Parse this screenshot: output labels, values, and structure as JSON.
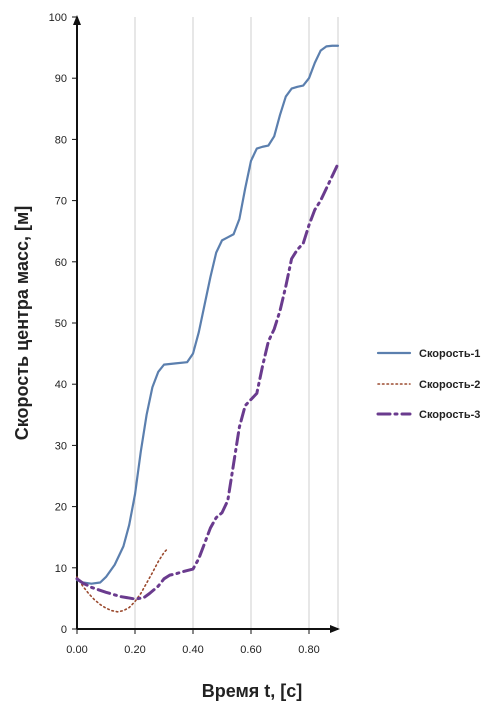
{
  "chart_data": {
    "type": "line",
    "title": "",
    "xlabel": "Время t, [c]",
    "ylabel": "Скорость центра масс, [м]",
    "xlim": [
      0,
      0.9
    ],
    "ylim": [
      0,
      100
    ],
    "x_ticks": [
      "0.00",
      "0.20",
      "0.40",
      "0.60",
      "0.80"
    ],
    "x_tick_values": [
      0,
      0.2,
      0.4,
      0.6,
      0.8
    ],
    "y_ticks": [
      "0",
      "10",
      "20",
      "30",
      "40",
      "50",
      "60",
      "70",
      "80",
      "90",
      "100"
    ],
    "y_tick_values": [
      0,
      10,
      20,
      30,
      40,
      50,
      60,
      70,
      80,
      90,
      100
    ],
    "grid": "vertical",
    "legend_position": "right",
    "series": [
      {
        "name": "Скорость-1",
        "color": "#5b7fae",
        "style": "solid",
        "x": [
          0,
          0.02,
          0.05,
          0.08,
          0.1,
          0.13,
          0.16,
          0.18,
          0.2,
          0.22,
          0.24,
          0.26,
          0.28,
          0.3,
          0.34,
          0.38,
          0.4,
          0.42,
          0.44,
          0.46,
          0.48,
          0.5,
          0.52,
          0.54,
          0.56,
          0.58,
          0.6,
          0.62,
          0.64,
          0.66,
          0.68,
          0.7,
          0.72,
          0.74,
          0.76,
          0.78,
          0.8,
          0.82,
          0.84,
          0.86,
          0.88,
          0.9
        ],
        "y": [
          8,
          7.6,
          7.4,
          7.6,
          8.5,
          10.5,
          13.5,
          17,
          22,
          29,
          35,
          39.5,
          42,
          43.2,
          43.4,
          43.6,
          45,
          48.5,
          53,
          57.5,
          61.5,
          63.5,
          64,
          64.5,
          67,
          72,
          76.5,
          78.5,
          78.8,
          79,
          80.5,
          84,
          87,
          88.3,
          88.6,
          88.8,
          90,
          92.5,
          94.5,
          95.2,
          95.3,
          95.3
        ]
      },
      {
        "name": "Скорость-2",
        "color": "#9b4a2e",
        "style": "dotted",
        "x": [
          0,
          0.02,
          0.04,
          0.06,
          0.08,
          0.1,
          0.12,
          0.14,
          0.16,
          0.18,
          0.2,
          0.22,
          0.24,
          0.26,
          0.28,
          0.3,
          0.31
        ],
        "y": [
          8.5,
          7,
          5.8,
          4.8,
          4,
          3.4,
          3,
          2.8,
          3,
          3.5,
          4.5,
          5.8,
          7.5,
          9.2,
          11,
          12.5,
          13
        ]
      },
      {
        "name": "Скорость-3",
        "color": "#6a3b8e",
        "style": "dashdot",
        "x": [
          0,
          0.02,
          0.05,
          0.1,
          0.15,
          0.2,
          0.23,
          0.25,
          0.28,
          0.3,
          0.32,
          0.34,
          0.36,
          0.4,
          0.42,
          0.44,
          0.46,
          0.48,
          0.5,
          0.52,
          0.54,
          0.56,
          0.58,
          0.6,
          0.62,
          0.64,
          0.66,
          0.68,
          0.7,
          0.72,
          0.74,
          0.76,
          0.78,
          0.8,
          0.82,
          0.84,
          0.86,
          0.88,
          0.9
        ],
        "y": [
          8.2,
          7.5,
          6.8,
          6,
          5.3,
          4.9,
          5.1,
          5.8,
          7,
          8.2,
          8.8,
          9,
          9.3,
          9.8,
          11.5,
          14,
          16.5,
          18.2,
          19,
          21,
          27,
          33,
          36.5,
          37.5,
          38.5,
          43,
          47,
          49,
          52,
          56,
          60.5,
          62,
          63,
          66,
          68.5,
          70,
          72,
          74,
          76
        ]
      }
    ]
  }
}
